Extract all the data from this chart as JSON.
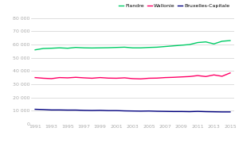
{
  "title": "",
  "years": [
    1991,
    1992,
    1993,
    1994,
    1995,
    1996,
    1997,
    1998,
    1999,
    2000,
    2001,
    2002,
    2003,
    2004,
    2005,
    2006,
    2007,
    2008,
    2009,
    2010,
    2011,
    2012,
    2013,
    2014,
    2015
  ],
  "wallonie": [
    35000,
    34500,
    34200,
    35000,
    34800,
    35200,
    34800,
    34500,
    35000,
    34600,
    34500,
    34800,
    34200,
    34000,
    34500,
    34600,
    35000,
    35200,
    35500,
    35800,
    36500,
    35800,
    37000,
    36000,
    38500
  ],
  "bruxelles": [
    11000,
    10800,
    10500,
    10500,
    10400,
    10400,
    10200,
    10100,
    10200,
    10000,
    10000,
    9800,
    9700,
    9600,
    9700,
    9500,
    9400,
    9300,
    9300,
    9200,
    9400,
    9200,
    9100,
    9000,
    9000
  ],
  "flandre": [
    56000,
    57000,
    57200,
    57500,
    57200,
    57800,
    57500,
    57400,
    57500,
    57600,
    57800,
    58000,
    57500,
    57500,
    57800,
    58000,
    58500,
    59000,
    59500,
    60000,
    61500,
    62000,
    60500,
    62500,
    63000
  ],
  "wallonie_color": "#ff0066",
  "bruxelles_color": "#000080",
  "flandre_color": "#00cc66",
  "background_color": "#ffffff",
  "grid_color": "#d0d0d0",
  "ylim": [
    0,
    80000
  ],
  "yticks": [
    0,
    10000,
    20000,
    30000,
    40000,
    50000,
    60000,
    70000,
    80000
  ],
  "xtick_labels": [
    "1991",
    "1993",
    "1995",
    "1997",
    "1999",
    "2001",
    "2003",
    "2005",
    "2007",
    "2009",
    "2011",
    "2013",
    "2015"
  ],
  "xtick_values": [
    1991,
    1993,
    1995,
    1997,
    1999,
    2001,
    2003,
    2005,
    2007,
    2009,
    2011,
    2013,
    2015
  ],
  "legend_labels": [
    "Wallonie",
    "Bruxelles-Capitale",
    "Flandre"
  ],
  "tick_color": "#aaaaaa",
  "tick_fontsize": 4.5,
  "legend_fontsize": 4.5,
  "line_width": 1.0
}
